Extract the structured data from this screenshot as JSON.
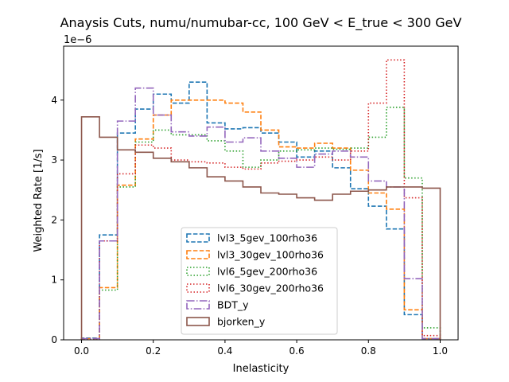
{
  "chart_data": {
    "type": "step",
    "title": "Anaysis Cuts, numu/numubar-cc, 100 GeV < E_true < 300 GeV",
    "xlabel": "Inelasticity",
    "ylabel": "Weighted Rate [1/s]",
    "y_scale_note": "1e−6",
    "xlim": [
      -0.05,
      1.05
    ],
    "ylim": [
      0,
      4.9
    ],
    "xticks": [
      0.0,
      0.2,
      0.4,
      0.6,
      0.8,
      1.0
    ],
    "xtick_labels": [
      "0.0",
      "0.2",
      "0.4",
      "0.6",
      "0.8",
      "1.0"
    ],
    "yticks": [
      0,
      1,
      2,
      3,
      4
    ],
    "ytick_labels": [
      "0",
      "1",
      "2",
      "3",
      "4"
    ],
    "bin_edges": [
      0.0,
      0.05,
      0.1,
      0.15,
      0.2,
      0.25,
      0.3,
      0.35,
      0.4,
      0.45,
      0.5,
      0.55,
      0.6,
      0.65,
      0.7,
      0.75,
      0.8,
      0.85,
      0.9,
      0.95,
      1.0
    ],
    "legend_position": "lower-center",
    "series": [
      {
        "name": "lvl3_5gev_100rho36",
        "color": "#1f77b4",
        "dash": "dashed",
        "values": [
          0.03,
          1.75,
          3.45,
          3.85,
          4.1,
          3.95,
          4.3,
          3.62,
          3.52,
          3.54,
          3.45,
          3.3,
          3.05,
          3.15,
          2.87,
          2.52,
          2.23,
          1.85,
          0.42,
          0.02
        ]
      },
      {
        "name": "lvl3_30gev_100rho36",
        "color": "#ff7f0e",
        "dash": "dashed",
        "values": [
          0.02,
          0.87,
          2.58,
          3.35,
          3.75,
          4.0,
          4.0,
          4.0,
          3.95,
          3.8,
          3.5,
          3.22,
          3.2,
          3.28,
          3.2,
          2.83,
          2.45,
          2.18,
          0.5,
          0.02
        ]
      },
      {
        "name": "lvl6_5gev_200rho36",
        "color": "#2ca02c",
        "dash": "dotted",
        "values": [
          0.02,
          0.83,
          2.55,
          3.3,
          3.5,
          3.42,
          3.42,
          3.32,
          3.15,
          2.88,
          3.0,
          3.15,
          3.17,
          3.2,
          3.18,
          3.2,
          3.38,
          3.88,
          2.7,
          0.2
        ]
      },
      {
        "name": "lvl6_30gev_200rho36",
        "color": "#d62728",
        "dash": "dotted",
        "values": [
          0.02,
          1.65,
          2.77,
          3.25,
          3.2,
          3.0,
          2.97,
          2.95,
          2.88,
          2.85,
          2.95,
          2.98,
          3.0,
          3.05,
          3.0,
          3.15,
          3.95,
          4.67,
          2.37,
          0.07
        ]
      },
      {
        "name": "BDT_y",
        "color": "#9467bd",
        "dash": "dashdot",
        "values": [
          0.02,
          1.65,
          3.65,
          4.2,
          3.75,
          3.47,
          3.4,
          3.55,
          3.3,
          3.37,
          3.15,
          3.03,
          2.88,
          3.1,
          3.15,
          3.05,
          2.65,
          2.55,
          1.02,
          0.02
        ]
      },
      {
        "name": "bjorken_y",
        "color": "#8c564b",
        "dash": "solid",
        "values": [
          3.72,
          3.38,
          3.17,
          3.13,
          3.03,
          2.97,
          2.87,
          2.72,
          2.65,
          2.55,
          2.45,
          2.43,
          2.37,
          2.33,
          2.43,
          2.48,
          2.5,
          2.55,
          2.55,
          2.53
        ]
      }
    ]
  }
}
